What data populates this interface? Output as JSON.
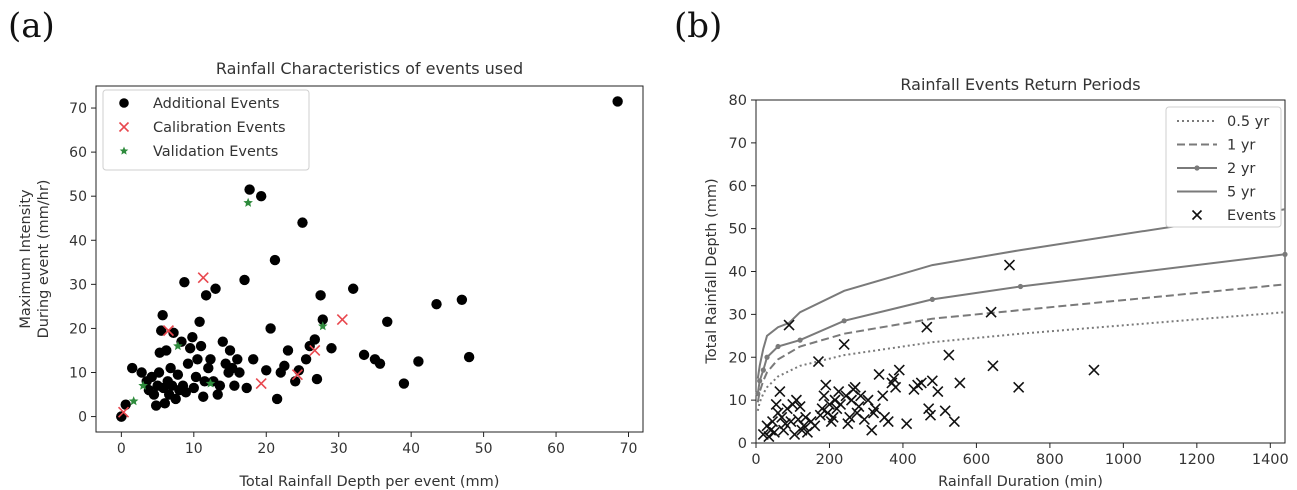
{
  "panels": [
    {
      "label": "(a)"
    },
    {
      "label": "(b)"
    }
  ],
  "chart_data": [
    {
      "type": "scatter",
      "title": "Rainfall Characteristics of events used",
      "xlabel": "Total Rainfall Depth per event (mm)",
      "ylabel_lines": [
        "Maximum Intensity",
        "During event (mm/hr)"
      ],
      "xlim": [
        -3.5,
        72
      ],
      "ylim": [
        -3.5,
        75
      ],
      "xticks": [
        0,
        10,
        20,
        30,
        40,
        50,
        60,
        70
      ],
      "yticks": [
        0,
        10,
        20,
        30,
        40,
        50,
        60,
        70
      ],
      "grid": false,
      "legend_position": "top-left",
      "series": [
        {
          "name": "Additional Events",
          "marker": "circle",
          "color": "#000000",
          "points": [
            [
              0,
              0
            ],
            [
              0,
              0
            ],
            [
              0.6,
              2.7
            ],
            [
              1.5,
              11
            ],
            [
              2.8,
              10
            ],
            [
              3.5,
              8
            ],
            [
              3.8,
              6
            ],
            [
              4.2,
              9
            ],
            [
              4.5,
              5
            ],
            [
              4.8,
              2.5
            ],
            [
              5.0,
              7
            ],
            [
              5.2,
              10
            ],
            [
              5.3,
              14.5
            ],
            [
              5.5,
              19.5
            ],
            [
              5.7,
              23
            ],
            [
              5.8,
              6.5
            ],
            [
              6.0,
              3
            ],
            [
              6.2,
              15
            ],
            [
              6.4,
              8
            ],
            [
              6.6,
              5
            ],
            [
              6.8,
              11
            ],
            [
              7.0,
              7
            ],
            [
              7.2,
              19
            ],
            [
              7.5,
              4
            ],
            [
              7.8,
              9.5
            ],
            [
              8.0,
              6
            ],
            [
              8.3,
              17
            ],
            [
              8.5,
              7
            ],
            [
              8.7,
              30.5
            ],
            [
              8.9,
              5.5
            ],
            [
              9.2,
              12
            ],
            [
              9.5,
              15.5
            ],
            [
              9.8,
              18
            ],
            [
              10.0,
              6.5
            ],
            [
              10.3,
              9
            ],
            [
              10.5,
              13
            ],
            [
              10.8,
              21.5
            ],
            [
              11.0,
              16
            ],
            [
              11.3,
              4.5
            ],
            [
              11.5,
              8
            ],
            [
              11.7,
              27.5
            ],
            [
              12.0,
              11
            ],
            [
              12.3,
              13
            ],
            [
              12.7,
              8
            ],
            [
              13.0,
              29
            ],
            [
              13.3,
              5
            ],
            [
              13.6,
              7
            ],
            [
              14.0,
              17
            ],
            [
              14.4,
              12
            ],
            [
              14.8,
              10
            ],
            [
              15.0,
              15
            ],
            [
              15.3,
              11
            ],
            [
              15.6,
              7
            ],
            [
              16.0,
              13
            ],
            [
              16.3,
              10
            ],
            [
              17.0,
              31
            ],
            [
              17.3,
              6.5
            ],
            [
              17.7,
              51.5
            ],
            [
              18.2,
              13
            ],
            [
              19.3,
              50
            ],
            [
              20.0,
              10.5
            ],
            [
              20.6,
              20
            ],
            [
              21.2,
              35.5
            ],
            [
              21.5,
              4
            ],
            [
              22.0,
              10
            ],
            [
              22.5,
              11.5
            ],
            [
              23.0,
              15
            ],
            [
              24.0,
              8
            ],
            [
              24.5,
              10.5
            ],
            [
              25.0,
              44
            ],
            [
              25.5,
              13
            ],
            [
              26.0,
              16
            ],
            [
              26.7,
              17.5
            ],
            [
              27.0,
              8.5
            ],
            [
              27.5,
              27.5
            ],
            [
              27.8,
              22
            ],
            [
              29.0,
              15.5
            ],
            [
              32.0,
              29
            ],
            [
              33.5,
              14
            ],
            [
              35.0,
              13
            ],
            [
              35.7,
              12
            ],
            [
              36.7,
              21.5
            ],
            [
              39.0,
              7.5
            ],
            [
              41.0,
              12.5
            ],
            [
              43.5,
              25.5
            ],
            [
              47.0,
              26.5
            ],
            [
              48.0,
              13.5
            ],
            [
              68.5,
              71.5
            ]
          ]
        },
        {
          "name": "Calibration Events",
          "marker": "x",
          "color": "#e8474e",
          "points": [
            [
              0.3,
              1
            ],
            [
              6.5,
              19.5
            ],
            [
              11.3,
              31.5
            ],
            [
              19.3,
              7.5
            ],
            [
              24.3,
              9.5
            ],
            [
              26.7,
              15
            ],
            [
              30.5,
              22
            ]
          ]
        },
        {
          "name": "Validation Events",
          "marker": "star",
          "color": "#2e8b3c",
          "points": [
            [
              1.7,
              3.5
            ],
            [
              3.0,
              7
            ],
            [
              7.8,
              16
            ],
            [
              12.3,
              7.5
            ],
            [
              17.5,
              48.5
            ],
            [
              27.8,
              20.5
            ]
          ]
        }
      ]
    },
    {
      "type": "line",
      "title": "Rainfall Events Return Periods",
      "xlabel": "Rainfall Duration (min)",
      "ylabel": "Total Rainfall Depth (mm)",
      "xlim": [
        0,
        1440
      ],
      "ylim": [
        0,
        80
      ],
      "xticks": [
        0,
        200,
        400,
        600,
        800,
        1000,
        1200,
        1400
      ],
      "yticks": [
        0,
        10,
        20,
        30,
        40,
        50,
        60,
        70,
        80
      ],
      "grid": false,
      "legend_position": "top-right",
      "series": [
        {
          "name": "0.5 yr",
          "style": "dotted",
          "color": "#7a7a7a",
          "x": [
            5,
            10,
            20,
            30,
            60,
            120,
            240,
            480,
            720,
            1440
          ],
          "y": [
            7.5,
            9.5,
            11.5,
            13,
            15.5,
            18,
            20.5,
            23.5,
            25.5,
            30.5
          ]
        },
        {
          "name": "1 yr",
          "style": "dashed",
          "color": "#7a7a7a",
          "x": [
            5,
            10,
            20,
            30,
            60,
            120,
            240,
            480,
            720,
            1440
          ],
          "y": [
            9.5,
            12,
            14.5,
            16.5,
            19.5,
            22.5,
            25.5,
            29,
            31,
            37
          ]
        },
        {
          "name": "2 yr",
          "style": "line-dot",
          "color": "#7a7a7a",
          "x": [
            5,
            10,
            20,
            30,
            60,
            120,
            240,
            480,
            720,
            1440
          ],
          "y": [
            11.5,
            14.5,
            17,
            20,
            22.5,
            24,
            28.5,
            33.5,
            36.5,
            44
          ]
        },
        {
          "name": "5 yr",
          "style": "solid",
          "color": "#7a7a7a",
          "x": [
            5,
            10,
            20,
            30,
            60,
            90,
            120,
            240,
            480,
            720,
            1440
          ],
          "y": [
            15,
            18,
            22,
            25,
            27,
            28,
            30.5,
            35.5,
            41.5,
            45,
            54.5
          ]
        },
        {
          "name": "Events",
          "style": "x-marker",
          "color": "#111111",
          "points": [
            [
              20,
              2
            ],
            [
              30,
              4
            ],
            [
              35,
              1.5
            ],
            [
              40,
              3
            ],
            [
              45,
              5
            ],
            [
              50,
              2.5
            ],
            [
              55,
              9
            ],
            [
              60,
              7
            ],
            [
              65,
              12
            ],
            [
              70,
              6
            ],
            [
              75,
              3
            ],
            [
              80,
              4.5
            ],
            [
              85,
              8
            ],
            [
              90,
              27.5
            ],
            [
              95,
              5
            ],
            [
              100,
              9
            ],
            [
              105,
              2
            ],
            [
              110,
              10
            ],
            [
              115,
              5.5
            ],
            [
              120,
              8.5
            ],
            [
              125,
              3
            ],
            [
              130,
              4
            ],
            [
              135,
              6
            ],
            [
              140,
              2.5
            ],
            [
              150,
              5
            ],
            [
              160,
              4
            ],
            [
              170,
              19
            ],
            [
              175,
              6.5
            ],
            [
              180,
              8
            ],
            [
              185,
              11
            ],
            [
              190,
              13.5
            ],
            [
              195,
              7
            ],
            [
              200,
              9
            ],
            [
              205,
              5
            ],
            [
              210,
              6
            ],
            [
              215,
              10
            ],
            [
              220,
              8
            ],
            [
              225,
              12
            ],
            [
              230,
              9
            ],
            [
              240,
              23
            ],
            [
              245,
              11
            ],
            [
              250,
              4.5
            ],
            [
              255,
              6
            ],
            [
              260,
              10
            ],
            [
              265,
              12.5
            ],
            [
              270,
              13
            ],
            [
              275,
              7
            ],
            [
              280,
              8.5
            ],
            [
              285,
              11
            ],
            [
              295,
              5.5
            ],
            [
              305,
              10
            ],
            [
              315,
              3
            ],
            [
              320,
              7
            ],
            [
              325,
              8
            ],
            [
              335,
              16
            ],
            [
              345,
              11
            ],
            [
              350,
              6
            ],
            [
              360,
              5
            ],
            [
              370,
              14
            ],
            [
              375,
              15
            ],
            [
              380,
              13
            ],
            [
              390,
              17
            ],
            [
              410,
              4.5
            ],
            [
              430,
              12.5
            ],
            [
              440,
              13.5
            ],
            [
              450,
              14
            ],
            [
              465,
              27
            ],
            [
              470,
              8
            ],
            [
              475,
              6.5
            ],
            [
              480,
              14.5
            ],
            [
              495,
              12
            ],
            [
              515,
              7.5
            ],
            [
              525,
              20.5
            ],
            [
              540,
              5
            ],
            [
              555,
              14
            ],
            [
              640,
              30.5
            ],
            [
              645,
              18
            ],
            [
              690,
              41.5
            ],
            [
              715,
              13
            ],
            [
              920,
              17
            ]
          ]
        }
      ]
    }
  ]
}
